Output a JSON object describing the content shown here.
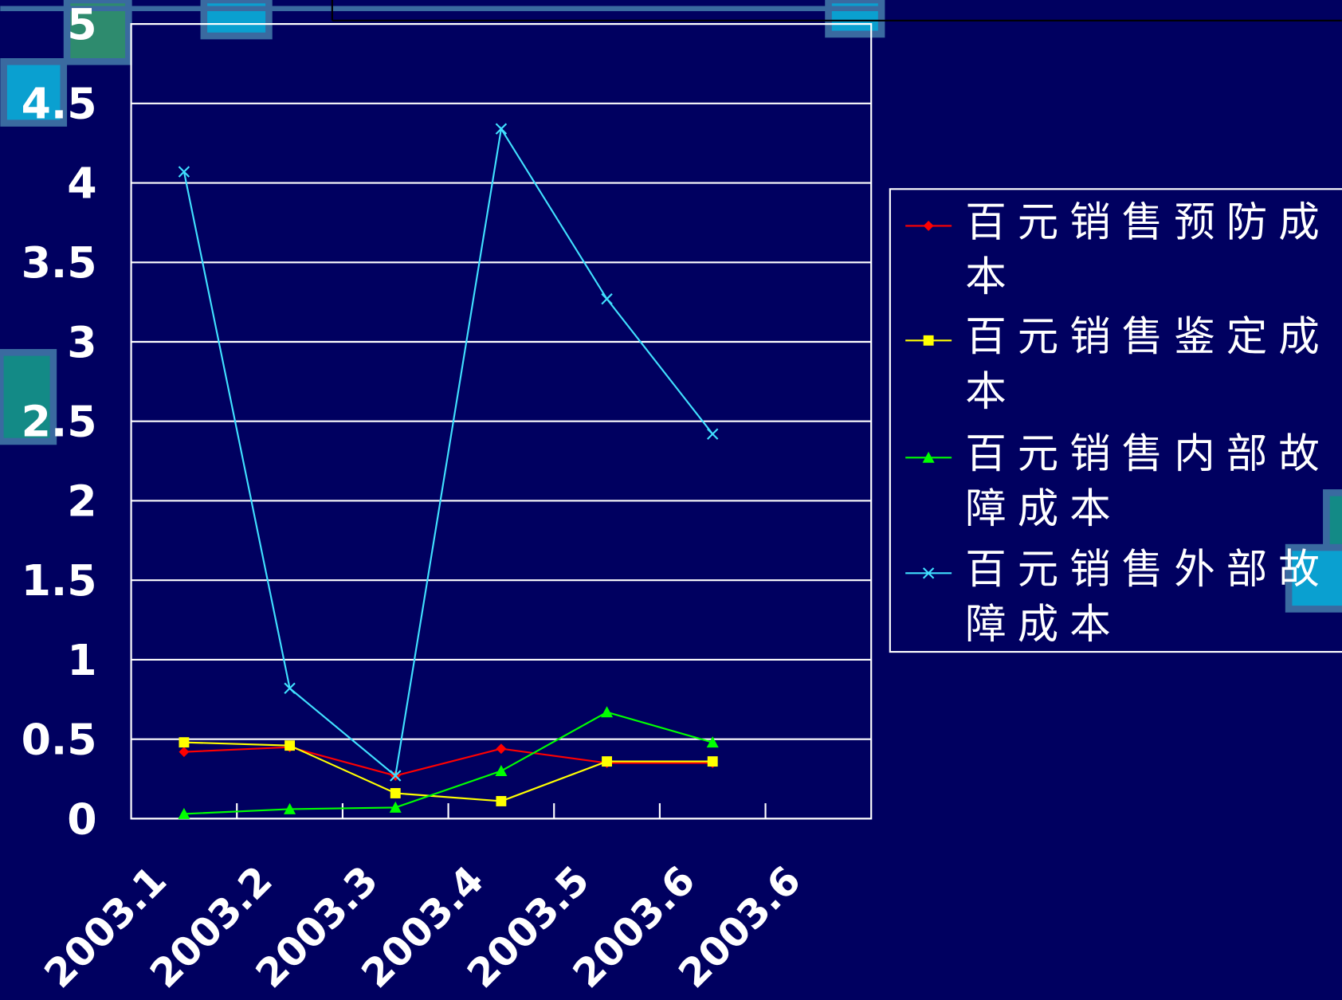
{
  "chart_data": {
    "type": "line",
    "categories": [
      "2003.1",
      "2003.2",
      "2003.3",
      "2003.4",
      "2003.5",
      "2003.6",
      "2003.6"
    ],
    "series": [
      {
        "name": "百元销售预防成本",
        "color": "#ff0000",
        "marker": "diamond",
        "values": [
          0.42,
          0.45,
          0.27,
          0.44,
          0.35,
          0.35,
          null
        ]
      },
      {
        "name": "百元销售鉴定成本",
        "color": "#ffff00",
        "marker": "square",
        "values": [
          0.48,
          0.46,
          0.16,
          0.11,
          0.36,
          0.36,
          null
        ]
      },
      {
        "name": "百元销售内部故障成本",
        "color": "#00ff00",
        "marker": "triangle",
        "values": [
          0.03,
          0.06,
          0.07,
          0.3,
          0.67,
          0.48,
          null
        ]
      },
      {
        "name": "百元销售外部故障成本",
        "color": "#40e0ff",
        "marker": "x",
        "values": [
          4.07,
          0.82,
          0.27,
          4.34,
          3.27,
          2.42,
          null
        ]
      }
    ],
    "ylim": [
      0,
      5
    ],
    "yticks": [
      0,
      0.5,
      1,
      1.5,
      2,
      2.5,
      3,
      3.5,
      4,
      4.5,
      5
    ],
    "grid": true,
    "legend": "right"
  }
}
